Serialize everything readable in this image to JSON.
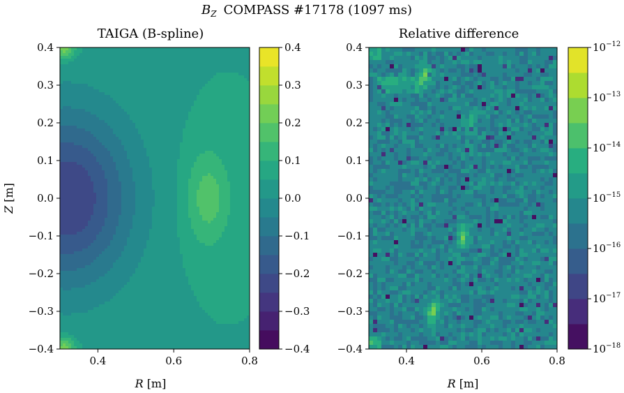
{
  "figure": {
    "title_symbol": "B",
    "title_subscript": "Z",
    "title_rest": "COMPASS #17178 (1097 ms)"
  },
  "chart_data": [
    {
      "type": "contour",
      "title": "TAIGA (B-spline)",
      "quantity": "B_Z",
      "xlabel_var": "R",
      "xlabel_unit": "[m]",
      "ylabel_var": "Z",
      "ylabel_unit": "[m]",
      "xlim": [
        0.3,
        0.8
      ],
      "ylim": [
        -0.4,
        0.4
      ],
      "xticks": [
        0.4,
        0.6,
        0.8
      ],
      "xticklabels": [
        "0.4",
        "0.6",
        "0.8"
      ],
      "yticks": [
        -0.4,
        -0.3,
        -0.2,
        -0.1,
        0.0,
        0.1,
        0.2,
        0.3,
        0.4
      ],
      "yticklabels": [
        "−0.4",
        "−0.3",
        "−0.2",
        "−0.1",
        "0.0",
        "0.1",
        "0.2",
        "0.3",
        "0.4"
      ],
      "colorbar": {
        "scale": "linear",
        "range": [
          -0.4,
          0.4
        ],
        "levels": 16,
        "ticks": [
          -0.4,
          -0.3,
          -0.2,
          -0.1,
          0.0,
          0.1,
          0.2,
          0.3,
          0.4
        ],
        "ticklabels": [
          "−0.4",
          "−0.3",
          "−0.2",
          "−0.1",
          "0.0",
          "0.1",
          "0.2",
          "0.3",
          "0.4"
        ]
      },
      "features": {
        "negative_minimum": {
          "R": 0.32,
          "Z": 0.0,
          "value": -0.3
        },
        "positive_maximum": {
          "R": 0.69,
          "Z": 0.0,
          "value": 0.15
        },
        "corner_bright_spots": [
          {
            "R": 0.31,
            "Z": 0.4,
            "value": 0.2
          },
          {
            "R": 0.31,
            "Z": -0.4,
            "value": 0.2
          }
        ]
      }
    },
    {
      "type": "contour",
      "title": "Relative difference",
      "xlabel_var": "R",
      "xlabel_unit": "[m]",
      "xlim": [
        0.3,
        0.8
      ],
      "ylim": [
        -0.4,
        0.4
      ],
      "xticks": [
        0.4,
        0.6,
        0.8
      ],
      "xticklabels": [
        "0.4",
        "0.6",
        "0.8"
      ],
      "yticks": [
        -0.4,
        -0.3,
        -0.2,
        -0.1,
        0.0,
        0.1,
        0.2,
        0.3,
        0.4
      ],
      "yticklabels": [
        "−0.4",
        "−0.3",
        "−0.2",
        "−0.1",
        "0.0",
        "0.1",
        "0.2",
        "0.3",
        "0.4"
      ],
      "colorbar": {
        "scale": "log",
        "range_exponent": [
          -18,
          -12
        ],
        "levels": 12,
        "tick_exponents": [
          -18,
          -17,
          -16,
          -15,
          -14,
          -13,
          -12
        ],
        "ticklabels": [
          {
            "base": "10",
            "exponent": "−18"
          },
          {
            "base": "10",
            "exponent": "−17"
          },
          {
            "base": "10",
            "exponent": "−16"
          },
          {
            "base": "10",
            "exponent": "−15"
          },
          {
            "base": "10",
            "exponent": "−14"
          },
          {
            "base": "10",
            "exponent": "−13"
          },
          {
            "base": "10",
            "exponent": "−12"
          }
        ]
      },
      "typical_log10_level": -15.3,
      "hot_spots": [
        {
          "R": 0.45,
          "Z": 0.325,
          "log10": -13.5
        },
        {
          "R": 0.55,
          "Z": -0.1,
          "log10": -13.5
        },
        {
          "R": 0.47,
          "Z": -0.3,
          "log10": -13.2
        },
        {
          "R": 0.57,
          "Z": 0.2,
          "log10": -14.2
        }
      ]
    }
  ],
  "colormap": [
    "#440154",
    "#472d7b",
    "#3b528b",
    "#2c728e",
    "#21918c",
    "#28ae80",
    "#5ec962",
    "#addc30",
    "#fde725"
  ]
}
